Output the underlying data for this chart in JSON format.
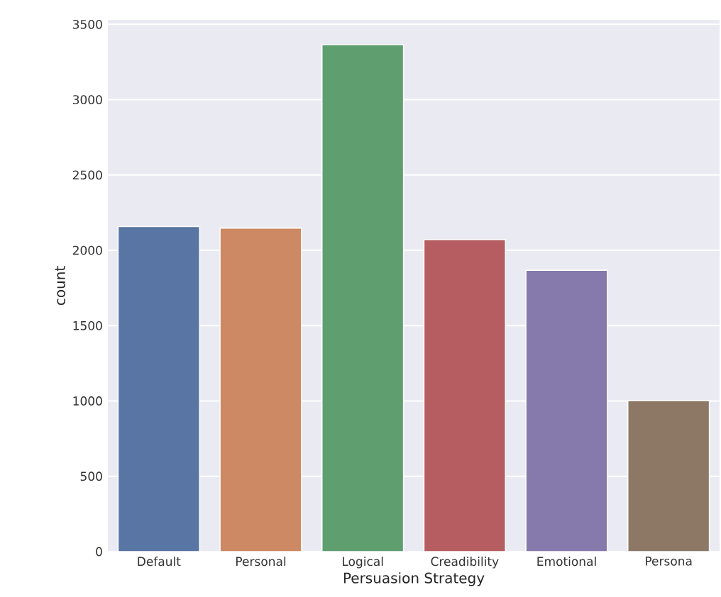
{
  "chart_data": {
    "type": "bar",
    "xlabel": "Persuasion Strategy",
    "ylabel": "count",
    "categories": [
      "Default",
      "Personal",
      "Logical",
      "Creadibility",
      "Emotional",
      "Persona"
    ],
    "values": [
      2158,
      2148,
      3365,
      2071,
      1868,
      1003
    ],
    "colors": [
      "#5975a4",
      "#cc8963",
      "#5f9e6e",
      "#b55d60",
      "#857aab",
      "#8d7866"
    ],
    "ylim": [
      0,
      3530
    ],
    "yticks": [
      0,
      500,
      1000,
      1500,
      2000,
      2500,
      3000,
      3500
    ],
    "grid": "y"
  }
}
